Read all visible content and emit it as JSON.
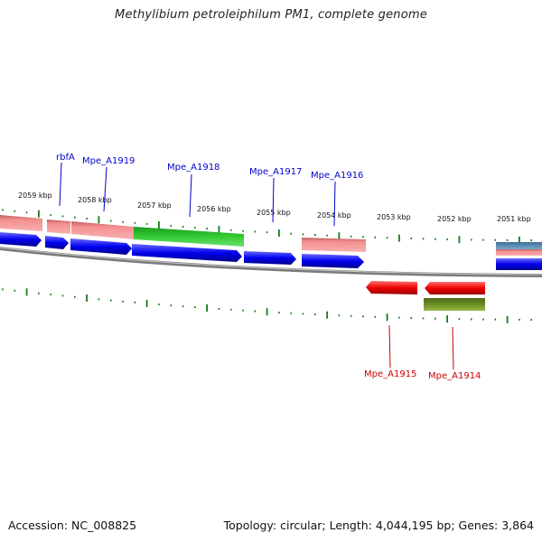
{
  "title": "Methylibium petroleiphilum PM1, complete genome",
  "footer": {
    "accession": "Accession: NC_008825",
    "summary": "Topology: circular; Length: 4,044,195 bp; Genes: 3,864"
  },
  "scale_ticks": [
    "2059 kbp",
    "2058 kbp",
    "2057 kbp",
    "2056 kbp",
    "2055 kbp",
    "2054 kbp",
    "2053 kbp",
    "2052 kbp",
    "2051 kbp"
  ],
  "gene_labels_top": [
    "rbfA",
    "Mpe_A1919",
    "Mpe_A1918",
    "Mpe_A1917",
    "Mpe_A1916"
  ],
  "gene_labels_bottom": [
    "Mpe_A1915",
    "Mpe_A1914"
  ],
  "colors": {
    "forward_cds": "#0000ee",
    "reverse_cds": "#ee0000",
    "highlight_gene": "#33cc33",
    "rna": "#f08080",
    "other_feature": "#6b8e23",
    "label_forward": "#0000cc",
    "label_reverse": "#cc0000",
    "ticks": "#1a7a1a",
    "backbone": "#888888"
  }
}
